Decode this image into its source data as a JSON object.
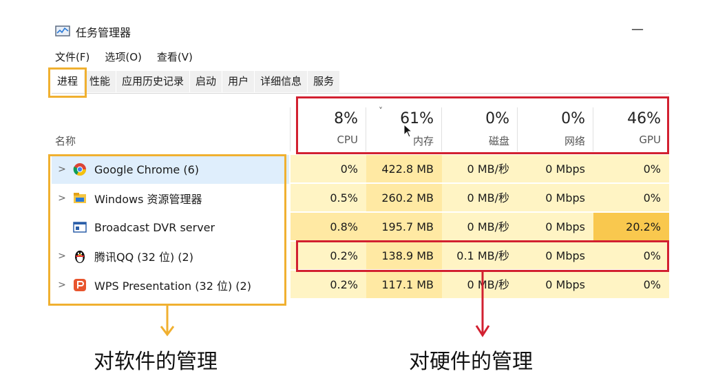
{
  "window": {
    "title": "任务管理器",
    "minimize_glyph": "—",
    "app_icon": "task-manager-icon"
  },
  "menu": [
    "文件(F)",
    "选项(O)",
    "查看(V)"
  ],
  "tabs": [
    "进程",
    "性能",
    "应用历史记录",
    "启动",
    "用户",
    "详细信息",
    "服务"
  ],
  "active_tab": 0,
  "columns": {
    "name_label": "名称",
    "metrics": [
      {
        "pct": "8%",
        "label": "CPU"
      },
      {
        "pct": "61%",
        "label": "内存"
      },
      {
        "pct": "0%",
        "label": "磁盘"
      },
      {
        "pct": "0%",
        "label": "网络"
      },
      {
        "pct": "46%",
        "label": "GPU"
      }
    ]
  },
  "processes": [
    {
      "name": "Google Chrome (6)",
      "icon": "chrome-icon",
      "expandable": true,
      "cpu": "0%",
      "memory": "422.8 MB",
      "disk": "0 MB/秒",
      "network": "0 Mbps",
      "gpu": "0%"
    },
    {
      "name": "Windows 资源管理器",
      "icon": "folder-icon",
      "expandable": true,
      "cpu": "0.5%",
      "memory": "260.2 MB",
      "disk": "0 MB/秒",
      "network": "0 Mbps",
      "gpu": "0%"
    },
    {
      "name": "Broadcast DVR server",
      "icon": "service-window-icon",
      "expandable": false,
      "cpu": "0.8%",
      "memory": "195.7 MB",
      "disk": "0 MB/秒",
      "network": "0 Mbps",
      "gpu": "20.2%"
    },
    {
      "name": "腾讯QQ (32 位) (2)",
      "icon": "qq-penguin-icon",
      "expandable": true,
      "cpu": "0.2%",
      "memory": "138.9 MB",
      "disk": "0.1 MB/秒",
      "network": "0 Mbps",
      "gpu": "0%"
    },
    {
      "name": "WPS Presentation (32 位) (2)",
      "icon": "wps-presentation-icon",
      "expandable": true,
      "cpu": "0.2%",
      "memory": "117.1 MB",
      "disk": "0 MB/秒",
      "network": "0 Mbps",
      "gpu": "0%"
    }
  ],
  "annotations": {
    "software": "对软件的管理",
    "hardware": "对硬件的管理"
  },
  "colors": {
    "software_highlight": "#f0b030",
    "hardware_highlight": "#d22030",
    "cell_low": "#fff4c4",
    "cell_mid": "#ffe9a3",
    "cell_high": "#f9c84e",
    "selected_row": "#dfeefc"
  }
}
